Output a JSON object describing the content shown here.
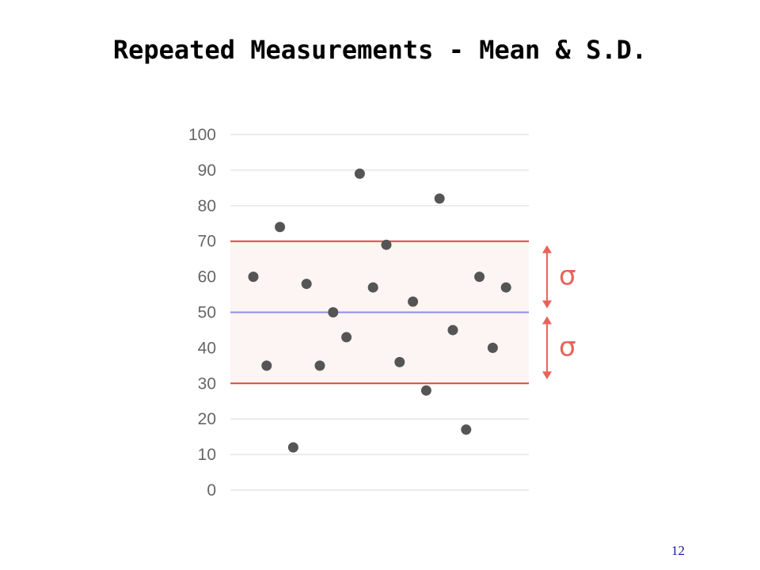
{
  "slide": {
    "title": "Repeated Measurements - Mean & S.D.",
    "page_number": "12"
  },
  "chart_data": {
    "type": "scatter",
    "title": "Repeated Measurements - Mean & S.D.",
    "xlabel": "",
    "ylabel": "",
    "ylim": [
      0,
      100
    ],
    "y_ticks": [
      "0",
      "10",
      "20",
      "30",
      "40",
      "50",
      "60",
      "70",
      "80",
      "90",
      "100"
    ],
    "grid": true,
    "series": [
      {
        "x": [
          1,
          2,
          3,
          4,
          5,
          6,
          7,
          8,
          9,
          10,
          11,
          12,
          13,
          14,
          15,
          16,
          17,
          18,
          19,
          20
        ],
        "y": [
          60,
          35,
          74,
          12,
          58,
          35,
          50,
          43,
          89,
          57,
          69,
          36,
          53,
          28,
          82,
          45,
          17,
          60,
          40,
          57
        ]
      }
    ],
    "mean": 50,
    "upper_sd": 70,
    "lower_sd": 30,
    "annotations": [
      "σ",
      "σ"
    ],
    "colors": {
      "points": "#555555",
      "mean_line": "#8c8cf0",
      "sd_lines": "#e04a33",
      "band_fill": "#fdf4f4",
      "grid": "#e6e6e6",
      "sigma": "#e8645a"
    }
  }
}
